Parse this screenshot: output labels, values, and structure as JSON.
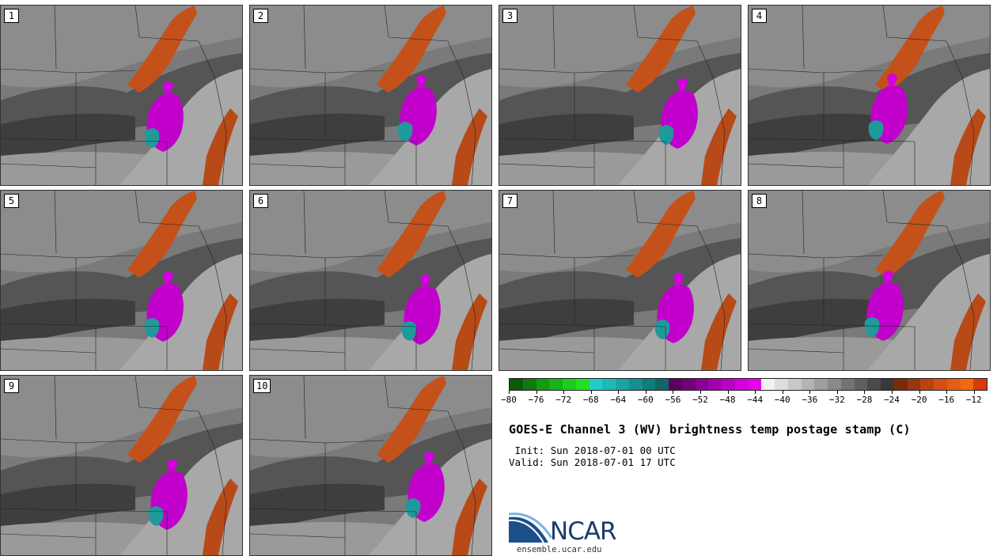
{
  "figure": {
    "title": "GOES-E Channel 3 (WV) brightness temp postage stamp (C)",
    "init_label": "Init:",
    "init_time": "Sun 2018-07-01 00 UTC",
    "valid_label": "Valid:",
    "valid_time": "Sun 2018-07-01 17 UTC"
  },
  "panels": [
    {
      "label": "1"
    },
    {
      "label": "2"
    },
    {
      "label": "3"
    },
    {
      "label": "4"
    },
    {
      "label": "5"
    },
    {
      "label": "6"
    },
    {
      "label": "7"
    },
    {
      "label": "8"
    },
    {
      "label": "9"
    },
    {
      "label": "10"
    }
  ],
  "colorbar": {
    "colors": [
      "#0a5a0a",
      "#0f7a0f",
      "#149a14",
      "#19b319",
      "#1ecc1e",
      "#22e022",
      "#22cccc",
      "#1fb9b9",
      "#1aa3a3",
      "#168f8f",
      "#127b7b",
      "#0e6868",
      "#5a0060",
      "#72007a",
      "#8a0094",
      "#a200ae",
      "#bb00c6",
      "#d200dc",
      "#e800ee",
      "#f2f2f2",
      "#dddddd",
      "#c8c8c8",
      "#b3b3b3",
      "#9e9e9e",
      "#898989",
      "#747474",
      "#5f5f5f",
      "#4a4a4a",
      "#383838",
      "#7a2a0a",
      "#9a360e",
      "#b94412",
      "#d45014",
      "#e85c12",
      "#f26a10",
      "#d83a0c"
    ],
    "tick_values": [
      "-80",
      "-76",
      "-72",
      "-68",
      "-64",
      "-60",
      "-56",
      "-52",
      "-48",
      "-44",
      "-40",
      "-36",
      "-32",
      "-28",
      "-24",
      "-20",
      "-16",
      "-12"
    ],
    "min": -80,
    "max": -10
  },
  "logo": {
    "name": "NCAR",
    "url": "ensemble.ucar.edu"
  }
}
